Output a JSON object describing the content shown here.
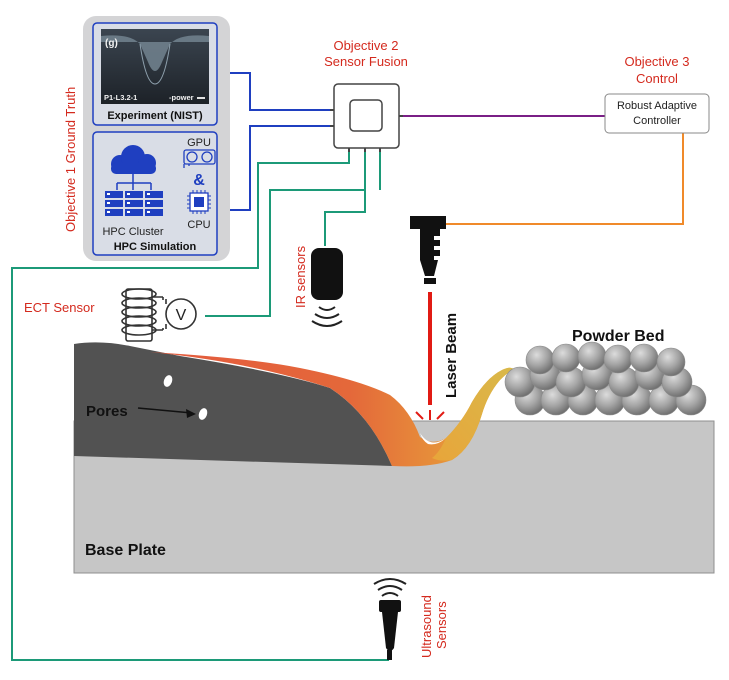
{
  "colors": {
    "objective_red": "#d42a1e",
    "wire_blue": "#1f3fc0",
    "wire_purple": "#7a1f86",
    "wire_orange": "#f08a2a",
    "wire_green": "#1c9a78",
    "laser_red": "#e11b14",
    "panel_gray": "#d4d4d6",
    "base_plate": "#c6c6c6",
    "solid_gray": "#525252",
    "melt_orange": "#e8643a",
    "powder_gray": "#9c9c9c"
  },
  "objectives": {
    "obj1": "Objective 1 Ground Truth",
    "obj2_line1": "Objective 2",
    "obj2_line2": "Sensor Fusion",
    "obj3_line1": "Objective 3",
    "obj3_line2": "Control"
  },
  "panel": {
    "image_tag": "(g)",
    "image_caption_left": "P1-L3.2-1",
    "image_caption_right": "-power",
    "experiment_label": "Experiment (NIST)",
    "gpu_label": "GPU",
    "and_label": "&",
    "cpu_label": "CPU",
    "hpc_cluster_label": "HPC Cluster",
    "hpc_simulation_label": "HPC Simulation"
  },
  "controller": {
    "line1": "Robust Adaptive",
    "line2": "Controller"
  },
  "sensors": {
    "ect": "ECT Sensor",
    "voltmeter": "V",
    "ir": "IR sensors",
    "ultrasound_line1": "Ultrasound",
    "ultrasound_line2": "Sensors"
  },
  "process": {
    "laser_beam": "Laser Beam",
    "powder_bed": "Powder Bed",
    "pores": "Pores",
    "base_plate": "Base Plate"
  },
  "icons": [
    "cloud-icon",
    "server-rack-icon",
    "gpu-card-icon",
    "cpu-chip-icon",
    "sensor-fusion-box-icon",
    "coil-icon",
    "voltmeter-icon",
    "ir-sensor-icon",
    "laser-head-icon",
    "ultrasound-probe-icon",
    "signal-waves-icon"
  ]
}
